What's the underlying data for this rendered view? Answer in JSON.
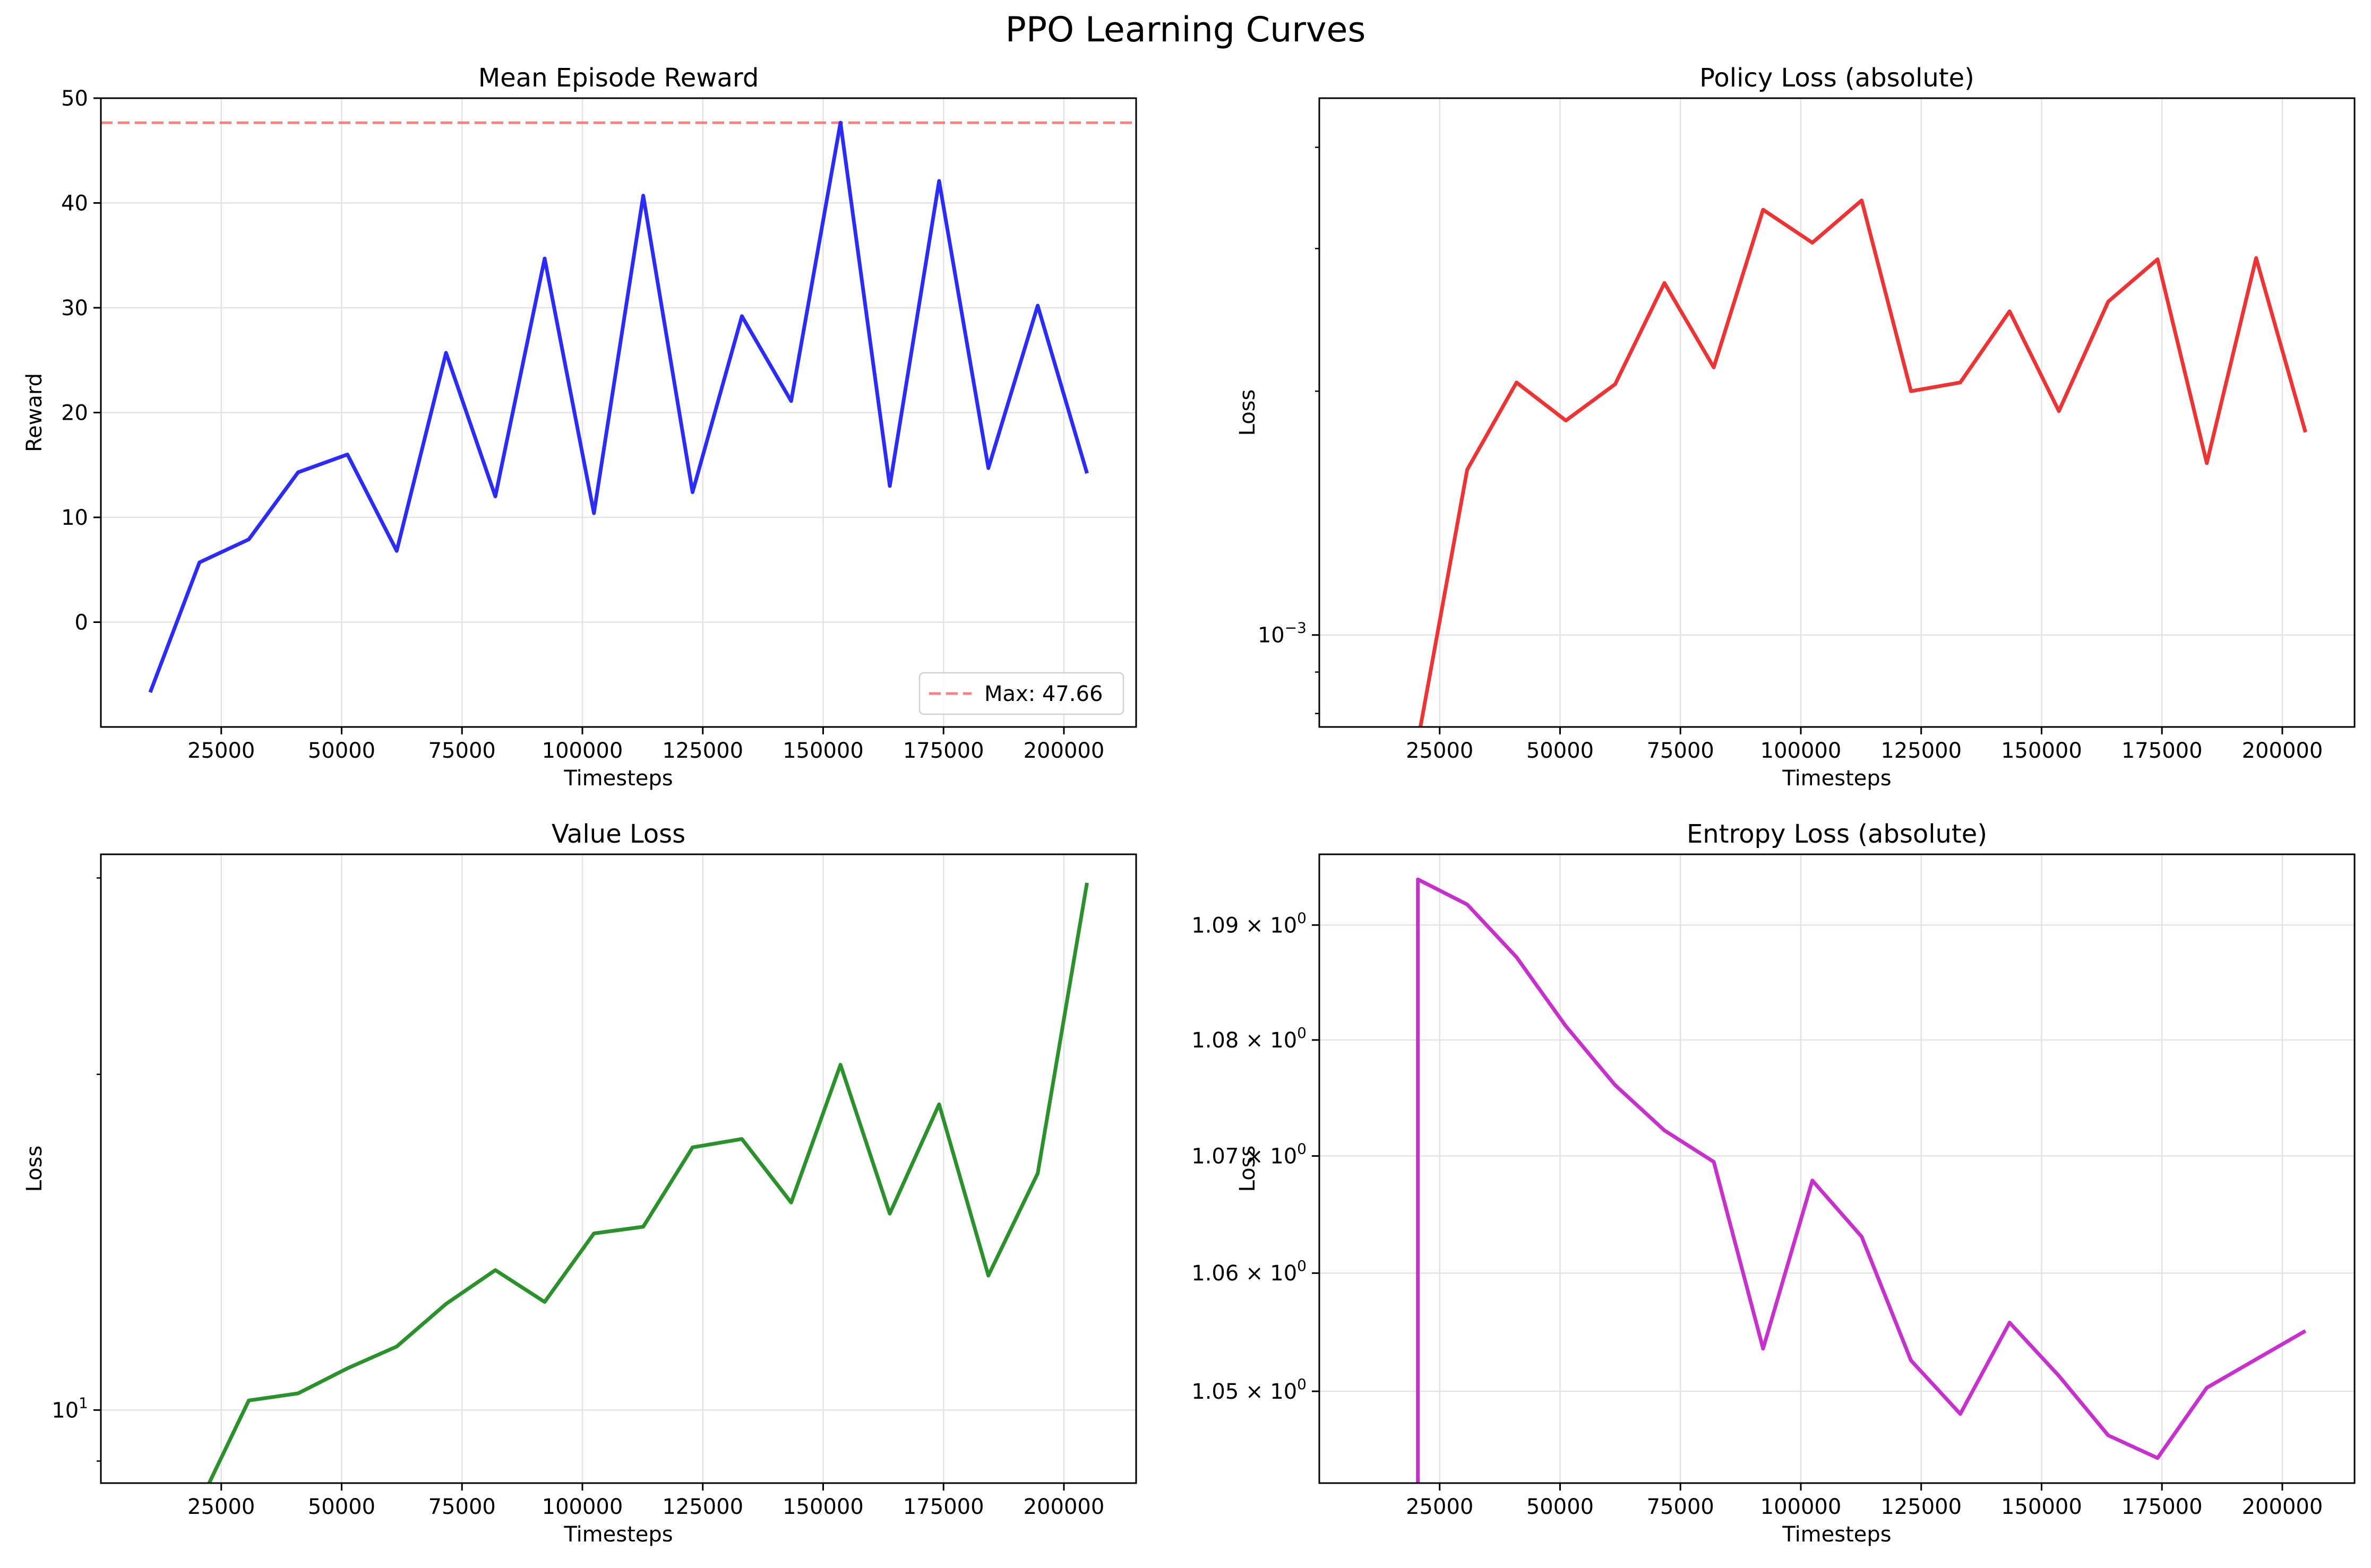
{
  "figure": {
    "title": "PPO Learning Curves"
  },
  "chart_data": [
    {
      "type": "line",
      "title": "Mean Episode Reward",
      "xlabel": "Timesteps",
      "ylabel": "Reward",
      "xscale": "linear",
      "yscale": "linear",
      "xlim": [
        0,
        215000
      ],
      "ylim": [
        -10,
        50
      ],
      "xticks": [
        25000,
        50000,
        75000,
        100000,
        125000,
        150000,
        175000,
        200000
      ],
      "xtick_labels": [
        "25000",
        "50000",
        "75000",
        "100000",
        "125000",
        "150000",
        "175000",
        "200000"
      ],
      "yticks": [
        0,
        10,
        20,
        30,
        40,
        50
      ],
      "ytick_labels": [
        "0",
        "10",
        "20",
        "30",
        "40",
        "50"
      ],
      "grid": true,
      "legend": "lower-right",
      "series": [
        {
          "color": "#2b2bff",
          "x": [
            10240,
            20480,
            30720,
            40960,
            51200,
            61440,
            71680,
            81920,
            92160,
            102400,
            112640,
            122880,
            133120,
            143360,
            153600,
            163840,
            174080,
            184320,
            194560,
            204800
          ],
          "y": [
            -6.7,
            5.7,
            7.9,
            14.3,
            16.0,
            6.8,
            25.7,
            12.0,
            34.7,
            10.4,
            40.7,
            12.4,
            29.2,
            21.1,
            47.66,
            13.0,
            42.1,
            14.7,
            30.2,
            14.2
          ]
        }
      ],
      "hlines": [
        {
          "name": "Max: 47.66",
          "y": 47.66,
          "color": "#ff6b6b",
          "style": "dashed"
        }
      ]
    },
    {
      "type": "line",
      "title": "Policy Loss (absolute)",
      "xlabel": "Timesteps",
      "ylabel": "Loss",
      "xscale": "linear",
      "yscale": "log",
      "xlim": [
        0,
        215000
      ],
      "ylim": [
        0.00077,
        0.0046
      ],
      "xticks": [
        25000,
        50000,
        75000,
        100000,
        125000,
        150000,
        175000,
        200000
      ],
      "xtick_labels": [
        "25000",
        "50000",
        "75000",
        "100000",
        "125000",
        "150000",
        "175000",
        "200000"
      ],
      "yticks_major": [
        0.001
      ],
      "ytick_labels": [
        {
          "base": "10",
          "exp": "−3"
        }
      ],
      "yticks_minor": [
        0.0008,
        0.0009,
        0.002,
        0.003,
        0.004
      ],
      "grid": true,
      "series": [
        {
          "color": "#f03232",
          "x": [
            20480,
            30720,
            40960,
            51200,
            61440,
            71680,
            81920,
            92160,
            102400,
            112640,
            122880,
            133120,
            143360,
            153600,
            163840,
            174080,
            184320,
            194560,
            204800
          ],
          "y": [
            0.00074,
            0.0016,
            0.00205,
            0.00184,
            0.00204,
            0.00272,
            0.00214,
            0.00335,
            0.00305,
            0.00344,
            0.002,
            0.00205,
            0.00251,
            0.00189,
            0.00258,
            0.00291,
            0.00163,
            0.00292,
            0.00178
          ]
        }
      ]
    },
    {
      "type": "line",
      "title": "Value Loss",
      "xlabel": "Timesteps",
      "ylabel": "Loss",
      "xscale": "linear",
      "yscale": "log",
      "xlim": [
        0,
        215000
      ],
      "ylim": [
        8.6,
        31.5
      ],
      "xticks": [
        25000,
        50000,
        75000,
        100000,
        125000,
        150000,
        175000,
        200000
      ],
      "xtick_labels": [
        "25000",
        "50000",
        "75000",
        "100000",
        "125000",
        "150000",
        "175000",
        "200000"
      ],
      "yticks_major": [
        10
      ],
      "ytick_labels": [
        {
          "base": "10",
          "exp": "1"
        }
      ],
      "yticks_minor": [
        9,
        20,
        30
      ],
      "grid": true,
      "series": [
        {
          "color": "#2a922a",
          "x": [
            20480,
            30720,
            40960,
            51200,
            61440,
            71680,
            81920,
            92160,
            102400,
            112640,
            122880,
            133120,
            143360,
            153600,
            163840,
            174080,
            184320,
            194560,
            204800
          ],
          "y": [
            8.25,
            10.2,
            10.35,
            10.9,
            11.4,
            12.45,
            13.35,
            12.5,
            14.4,
            14.6,
            17.2,
            17.5,
            15.35,
            20.4,
            15.0,
            18.8,
            13.2,
            16.3,
            29.7
          ]
        }
      ]
    },
    {
      "type": "line",
      "title": "Entropy Loss (absolute)",
      "xlabel": "Timesteps",
      "ylabel": "Loss",
      "xscale": "linear",
      "yscale": "log",
      "xlim": [
        0,
        215000
      ],
      "ylim": [
        1.0423,
        1.0962
      ],
      "xticks": [
        25000,
        50000,
        75000,
        100000,
        125000,
        150000,
        175000,
        200000
      ],
      "xtick_labels": [
        "25000",
        "50000",
        "75000",
        "100000",
        "125000",
        "150000",
        "175000",
        "200000"
      ],
      "yticks_major": [
        1.05,
        1.06,
        1.07,
        1.08,
        1.09
      ],
      "ytick_labels": [
        {
          "base": "1.05 × 10",
          "exp": "0"
        },
        {
          "base": "1.06 × 10",
          "exp": "0"
        },
        {
          "base": "1.07 × 10",
          "exp": "0"
        },
        {
          "base": "1.08 × 10",
          "exp": "0"
        },
        {
          "base": "1.09 × 10",
          "exp": "0"
        }
      ],
      "grid": true,
      "series": [
        {
          "color": "#c92ecf",
          "x": [
            20480,
            20480,
            30720,
            40960,
            51200,
            61440,
            71680,
            81920,
            92160,
            102400,
            112640,
            122880,
            133120,
            143360,
            153600,
            163840,
            174080,
            184320,
            194560,
            204800
          ],
          "y": [
            1.03,
            1.094,
            1.0918,
            1.0872,
            1.0812,
            1.0761,
            1.0722,
            1.0695,
            1.0536,
            1.0679,
            1.0631,
            1.0526,
            1.0481,
            1.0558,
            1.0513,
            1.0463,
            1.0444,
            1.0503,
            1.0527,
            1.0551
          ]
        }
      ]
    }
  ]
}
